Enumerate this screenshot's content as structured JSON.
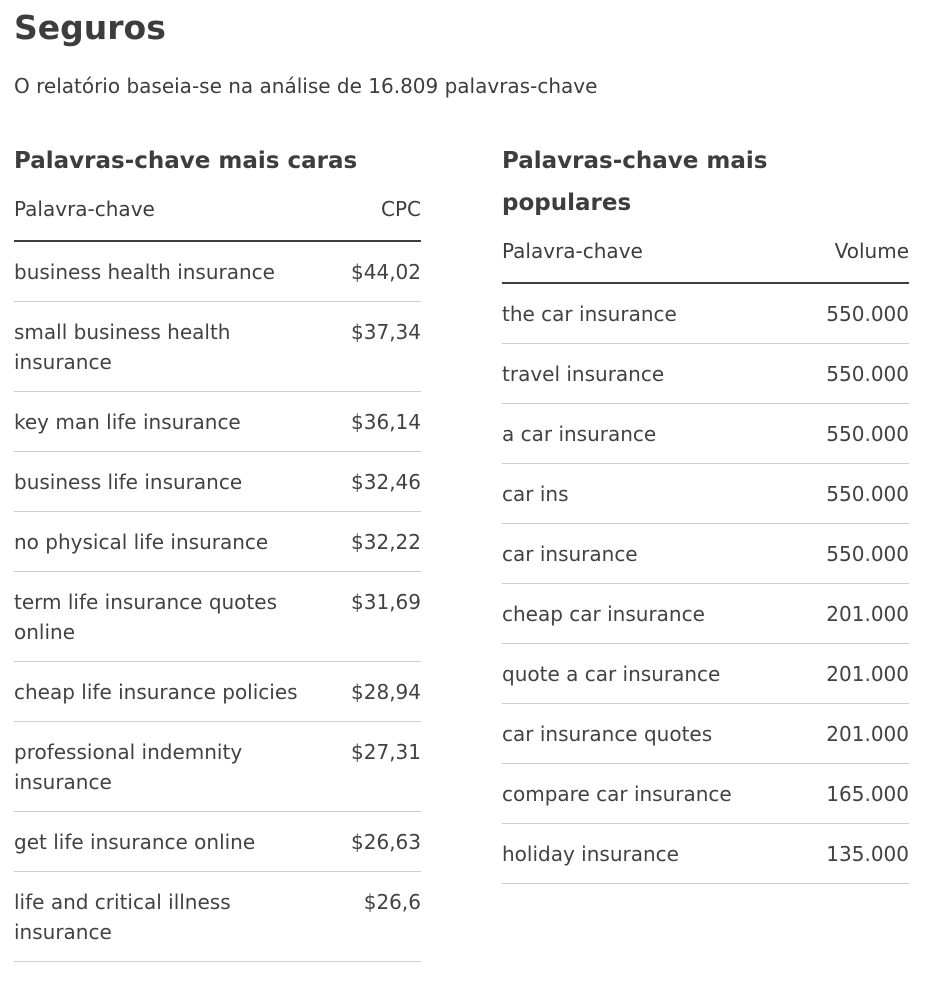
{
  "page": {
    "title": "Seguros",
    "subtitle": "O relatório baseia-se na análise de 16.809 palavras-chave"
  },
  "colors": {
    "text": "#3d3d3d",
    "header_rule": "#3d3d3d",
    "row_rule": "#cdcdcd",
    "background": "#ffffff"
  },
  "expensive": {
    "title": "Palavras-chave mais caras",
    "columns": {
      "keyword": "Palavra-chave",
      "value": "CPC"
    },
    "rows": [
      {
        "keyword": "business health insurance",
        "value": "$44,02"
      },
      {
        "keyword": "small business health insurance",
        "value": "$37,34"
      },
      {
        "keyword": "key man life insurance",
        "value": "$36,14"
      },
      {
        "keyword": "business life insurance",
        "value": "$32,46"
      },
      {
        "keyword": "no physical life insurance",
        "value": "$32,22"
      },
      {
        "keyword": "term life insurance quotes online",
        "value": "$31,69"
      },
      {
        "keyword": "cheap life insurance policies",
        "value": "$28,94"
      },
      {
        "keyword": "professional indemnity insurance",
        "value": "$27,31"
      },
      {
        "keyword": "get life insurance online",
        "value": "$26,63"
      },
      {
        "keyword": "life and critical illness insurance",
        "value": "$26,6"
      }
    ]
  },
  "popular": {
    "title": "Palavras-chave mais populares",
    "columns": {
      "keyword": "Palavra-chave",
      "value": "Volume"
    },
    "rows": [
      {
        "keyword": "the car insurance",
        "value": "550.000"
      },
      {
        "keyword": "travel insurance",
        "value": "550.000"
      },
      {
        "keyword": "a car insurance",
        "value": "550.000"
      },
      {
        "keyword": "car ins",
        "value": "550.000"
      },
      {
        "keyword": "car insurance",
        "value": "550.000"
      },
      {
        "keyword": "cheap car insurance",
        "value": "201.000"
      },
      {
        "keyword": "quote a car insurance",
        "value": "201.000"
      },
      {
        "keyword": "car insurance quotes",
        "value": "201.000"
      },
      {
        "keyword": "compare car insurance",
        "value": "165.000"
      },
      {
        "keyword": "holiday insurance",
        "value": "135.000"
      }
    ]
  }
}
